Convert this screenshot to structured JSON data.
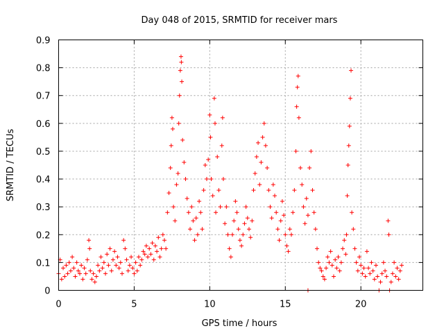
{
  "chart_data": {
    "type": "scatter",
    "title": "Day 048 of 2015, SRMTID for receiver mars",
    "xlabel": "GPS time / hours",
    "ylabel": "SRMTID / TECUs",
    "xlim": [
      0,
      24.1
    ],
    "ylim": [
      0,
      0.9
    ],
    "xticks": [
      0,
      5,
      10,
      15,
      20
    ],
    "xtick_labels": [
      "0",
      "5",
      "10",
      "15",
      "20"
    ],
    "yticks": [
      0,
      0.1,
      0.2,
      0.3,
      0.4,
      0.5,
      0.6,
      0.7,
      0.8,
      0.9
    ],
    "ytick_labels": [
      "0",
      "0.1",
      "0.2",
      "0.3",
      "0.4",
      "0.5",
      "0.6",
      "0.7",
      "0.8",
      "0.9"
    ],
    "grid": true,
    "marker": "+",
    "color": "#ff0000",
    "series": [
      {
        "name": "SRMTID",
        "points": [
          [
            0.0,
            0.06
          ],
          [
            0.1,
            0.11
          ],
          [
            0.2,
            0.04
          ],
          [
            0.3,
            0.08
          ],
          [
            0.4,
            0.05
          ],
          [
            0.5,
            0.09
          ],
          [
            0.6,
            0.06
          ],
          [
            0.7,
            0.1
          ],
          [
            0.8,
            0.07
          ],
          [
            0.9,
            0.12
          ],
          [
            1.0,
            0.08
          ],
          [
            1.1,
            0.05
          ],
          [
            1.2,
            0.1
          ],
          [
            1.3,
            0.07
          ],
          [
            1.4,
            0.06
          ],
          [
            1.5,
            0.09
          ],
          [
            1.6,
            0.04
          ],
          [
            1.7,
            0.08
          ],
          [
            1.8,
            0.06
          ],
          [
            1.9,
            0.11
          ],
          [
            2.0,
            0.18
          ],
          [
            2.05,
            0.15
          ],
          [
            2.1,
            0.07
          ],
          [
            2.2,
            0.04
          ],
          [
            2.3,
            0.06
          ],
          [
            2.4,
            0.03
          ],
          [
            2.5,
            0.05
          ],
          [
            2.6,
            0.09
          ],
          [
            2.7,
            0.07
          ],
          [
            2.8,
            0.12
          ],
          [
            2.9,
            0.08
          ],
          [
            3.0,
            0.1
          ],
          [
            3.1,
            0.06
          ],
          [
            3.2,
            0.13
          ],
          [
            3.3,
            0.09
          ],
          [
            3.4,
            0.15
          ],
          [
            3.5,
            0.07
          ],
          [
            3.6,
            0.11
          ],
          [
            3.7,
            0.14
          ],
          [
            3.8,
            0.09
          ],
          [
            3.9,
            0.12
          ],
          [
            4.0,
            0.08
          ],
          [
            4.1,
            0.1
          ],
          [
            4.2,
            0.06
          ],
          [
            4.3,
            0.18
          ],
          [
            4.4,
            0.15
          ],
          [
            4.5,
            0.11
          ],
          [
            4.6,
            0.07
          ],
          [
            4.7,
            0.09
          ],
          [
            4.8,
            0.12
          ],
          [
            4.9,
            0.08
          ],
          [
            5.0,
            0.06
          ],
          [
            5.1,
            0.1
          ],
          [
            5.2,
            0.07
          ],
          [
            5.3,
            0.12
          ],
          [
            5.4,
            0.09
          ],
          [
            5.5,
            0.11
          ],
          [
            5.6,
            0.14
          ],
          [
            5.7,
            0.13
          ],
          [
            5.8,
            0.16
          ],
          [
            5.9,
            0.12
          ],
          [
            6.0,
            0.15
          ],
          [
            6.1,
            0.13
          ],
          [
            6.2,
            0.17
          ],
          [
            6.3,
            0.11
          ],
          [
            6.4,
            0.16
          ],
          [
            6.5,
            0.14
          ],
          [
            6.6,
            0.19
          ],
          [
            6.7,
            0.12
          ],
          [
            6.8,
            0.15
          ],
          [
            6.9,
            0.2
          ],
          [
            7.0,
            0.18
          ],
          [
            7.1,
            0.15
          ],
          [
            7.2,
            0.28
          ],
          [
            7.3,
            0.35
          ],
          [
            7.4,
            0.44
          ],
          [
            7.45,
            0.52
          ],
          [
            7.5,
            0.62
          ],
          [
            7.55,
            0.58
          ],
          [
            7.6,
            0.3
          ],
          [
            7.7,
            0.25
          ],
          [
            7.8,
            0.38
          ],
          [
            7.9,
            0.42
          ],
          [
            7.95,
            0.6
          ],
          [
            8.0,
            0.7
          ],
          [
            8.05,
            0.79
          ],
          [
            8.1,
            0.84
          ],
          [
            8.12,
            0.82
          ],
          [
            8.15,
            0.75
          ],
          [
            8.2,
            0.54
          ],
          [
            8.3,
            0.46
          ],
          [
            8.4,
            0.4
          ],
          [
            8.5,
            0.33
          ],
          [
            8.6,
            0.28
          ],
          [
            8.7,
            0.22
          ],
          [
            8.8,
            0.3
          ],
          [
            8.9,
            0.25
          ],
          [
            9.0,
            0.18
          ],
          [
            9.1,
            0.26
          ],
          [
            9.2,
            0.2
          ],
          [
            9.3,
            0.32
          ],
          [
            9.4,
            0.28
          ],
          [
            9.5,
            0.22
          ],
          [
            9.6,
            0.36
          ],
          [
            9.7,
            0.45
          ],
          [
            9.8,
            0.4
          ],
          [
            9.9,
            0.47
          ],
          [
            10.0,
            0.63
          ],
          [
            10.05,
            0.55
          ],
          [
            10.1,
            0.4
          ],
          [
            10.2,
            0.34
          ],
          [
            10.3,
            0.69
          ],
          [
            10.35,
            0.6
          ],
          [
            10.4,
            0.28
          ],
          [
            10.5,
            0.48
          ],
          [
            10.6,
            0.36
          ],
          [
            10.7,
            0.3
          ],
          [
            10.8,
            0.52
          ],
          [
            10.85,
            0.62
          ],
          [
            10.9,
            0.4
          ],
          [
            11.0,
            0.24
          ],
          [
            11.1,
            0.3
          ],
          [
            11.2,
            0.2
          ],
          [
            11.3,
            0.15
          ],
          [
            11.4,
            0.12
          ],
          [
            11.5,
            0.2
          ],
          [
            11.6,
            0.25
          ],
          [
            11.7,
            0.32
          ],
          [
            11.8,
            0.28
          ],
          [
            11.9,
            0.22
          ],
          [
            12.0,
            0.18
          ],
          [
            12.1,
            0.16
          ],
          [
            12.2,
            0.2
          ],
          [
            12.3,
            0.24
          ],
          [
            12.4,
            0.3
          ],
          [
            12.5,
            0.26
          ],
          [
            12.6,
            0.22
          ],
          [
            12.7,
            0.19
          ],
          [
            12.8,
            0.25
          ],
          [
            12.9,
            0.36
          ],
          [
            13.0,
            0.42
          ],
          [
            13.1,
            0.48
          ],
          [
            13.2,
            0.53
          ],
          [
            13.3,
            0.38
          ],
          [
            13.4,
            0.46
          ],
          [
            13.5,
            0.55
          ],
          [
            13.6,
            0.6
          ],
          [
            13.7,
            0.52
          ],
          [
            13.8,
            0.44
          ],
          [
            13.9,
            0.36
          ],
          [
            14.0,
            0.3
          ],
          [
            14.1,
            0.26
          ],
          [
            14.2,
            0.38
          ],
          [
            14.3,
            0.34
          ],
          [
            14.4,
            0.28
          ],
          [
            14.5,
            0.22
          ],
          [
            14.6,
            0.18
          ],
          [
            14.7,
            0.25
          ],
          [
            14.8,
            0.32
          ],
          [
            14.9,
            0.27
          ],
          [
            15.0,
            0.2
          ],
          [
            15.1,
            0.16
          ],
          [
            15.2,
            0.14
          ],
          [
            15.3,
            0.22
          ],
          [
            15.4,
            0.2
          ],
          [
            15.5,
            0.28
          ],
          [
            15.6,
            0.36
          ],
          [
            15.7,
            0.5
          ],
          [
            15.75,
            0.66
          ],
          [
            15.8,
            0.73
          ],
          [
            15.85,
            0.77
          ],
          [
            15.9,
            0.62
          ],
          [
            16.0,
            0.44
          ],
          [
            16.1,
            0.38
          ],
          [
            16.2,
            0.3
          ],
          [
            16.3,
            0.24
          ],
          [
            16.4,
            0.33
          ],
          [
            16.5,
            0.27
          ],
          [
            16.6,
            0.44
          ],
          [
            16.7,
            0.5
          ],
          [
            16.8,
            0.36
          ],
          [
            16.9,
            0.28
          ],
          [
            17.0,
            0.22
          ],
          [
            17.1,
            0.15
          ],
          [
            17.2,
            0.1
          ],
          [
            17.3,
            0.08
          ],
          [
            17.4,
            0.07
          ],
          [
            17.5,
            0.05
          ],
          [
            17.6,
            0.04
          ],
          [
            17.7,
            0.08
          ],
          [
            17.8,
            0.12
          ],
          [
            17.9,
            0.1
          ],
          [
            18.0,
            0.14
          ],
          [
            18.1,
            0.09
          ],
          [
            18.2,
            0.05
          ],
          [
            18.3,
            0.11
          ],
          [
            18.4,
            0.08
          ],
          [
            18.5,
            0.12
          ],
          [
            18.6,
            0.07
          ],
          [
            18.7,
            0.1
          ],
          [
            18.8,
            0.15
          ],
          [
            18.9,
            0.18
          ],
          [
            19.0,
            0.13
          ],
          [
            19.05,
            0.2
          ],
          [
            19.1,
            0.34
          ],
          [
            19.15,
            0.45
          ],
          [
            19.2,
            0.52
          ],
          [
            19.25,
            0.59
          ],
          [
            19.3,
            0.69
          ],
          [
            19.35,
            0.79
          ],
          [
            19.4,
            0.28
          ],
          [
            19.5,
            0.22
          ],
          [
            19.6,
            0.15
          ],
          [
            19.7,
            0.1
          ],
          [
            19.8,
            0.07
          ],
          [
            19.9,
            0.12
          ],
          [
            20.0,
            0.09
          ],
          [
            20.1,
            0.06
          ],
          [
            20.2,
            0.08
          ],
          [
            20.3,
            0.05
          ],
          [
            20.4,
            0.14
          ],
          [
            20.5,
            0.08
          ],
          [
            20.6,
            0.06
          ],
          [
            20.7,
            0.1
          ],
          [
            20.8,
            0.07
          ],
          [
            20.9,
            0.04
          ],
          [
            21.0,
            0.09
          ],
          [
            21.1,
            0.05
          ],
          [
            21.2,
            0.0
          ],
          [
            21.3,
            0.03
          ],
          [
            21.4,
            0.06
          ],
          [
            21.5,
            0.1
          ],
          [
            21.6,
            0.07
          ],
          [
            21.7,
            0.05
          ],
          [
            21.8,
            0.25
          ],
          [
            21.85,
            0.2
          ],
          [
            21.9,
            0.0
          ],
          [
            22.0,
            0.03
          ],
          [
            22.1,
            0.06
          ],
          [
            22.2,
            0.1
          ],
          [
            22.3,
            0.05
          ],
          [
            22.4,
            0.08
          ],
          [
            22.5,
            0.04
          ],
          [
            22.6,
            0.07
          ],
          [
            22.7,
            0.09
          ],
          [
            16.5,
            0.0
          ]
        ]
      }
    ]
  }
}
